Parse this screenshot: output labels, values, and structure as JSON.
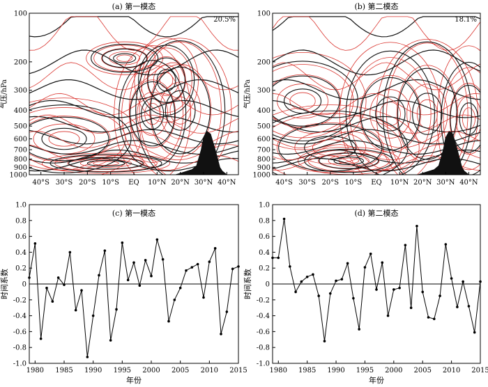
{
  "colors": {
    "streamline_red": "#d9322c",
    "streamline_black": "#111111",
    "terrain": "#111111",
    "axis": "#000000"
  },
  "chart_data": [
    {
      "type": "streamline",
      "title": "(a) 第一模态",
      "annotation": "20.5%",
      "ylabel": "气压/hPa",
      "yscale": "log",
      "y_ticks": [
        100,
        200,
        300,
        400,
        500,
        600,
        700,
        800,
        900,
        1000
      ],
      "x_ticks": [
        "40°S",
        "30°S",
        "20°S",
        "10°S",
        "EQ",
        "10°N",
        "20°N",
        "30°N",
        "40°N"
      ],
      "x_tick_values": [
        -40,
        -30,
        -20,
        -10,
        0,
        10,
        20,
        30,
        40
      ],
      "xlim": [
        -45,
        45
      ],
      "ylim": [
        1000,
        100
      ],
      "terrain": [
        [
          18,
          1000
        ],
        [
          22,
          960
        ],
        [
          25,
          930
        ],
        [
          27,
          880
        ],
        [
          29,
          700
        ],
        [
          30,
          590
        ],
        [
          31.5,
          540
        ],
        [
          33,
          560
        ],
        [
          35,
          700
        ],
        [
          37,
          900
        ],
        [
          38,
          950
        ],
        [
          40,
          1000
        ]
      ]
    },
    {
      "type": "streamline",
      "title": "(b) 第二模态",
      "annotation": "18.1%",
      "ylabel": "气压/hPa",
      "yscale": "log",
      "y_ticks": [
        100,
        200,
        300,
        400,
        500,
        600,
        700,
        800,
        900,
        1000
      ],
      "x_ticks": [
        "40°S",
        "30°S",
        "20°S",
        "10°S",
        "EQ",
        "10°N",
        "20°N",
        "30°N",
        "40°N"
      ],
      "x_tick_values": [
        -40,
        -30,
        -20,
        -10,
        0,
        10,
        20,
        30,
        40
      ],
      "xlim": [
        -45,
        45
      ],
      "ylim": [
        1000,
        100
      ],
      "terrain": [
        [
          18,
          1000
        ],
        [
          22,
          960
        ],
        [
          25,
          930
        ],
        [
          27,
          880
        ],
        [
          29,
          700
        ],
        [
          30,
          590
        ],
        [
          31.5,
          540
        ],
        [
          33,
          560
        ],
        [
          35,
          700
        ],
        [
          37,
          900
        ],
        [
          38,
          950
        ],
        [
          40,
          1000
        ]
      ]
    },
    {
      "type": "line",
      "title": "(c) 第一模态",
      "xlabel": "年份",
      "ylabel": "时间系数",
      "xlim": [
        1979,
        2015
      ],
      "ylim": [
        -1.0,
        1.0
      ],
      "x_ticks": [
        1980,
        1985,
        1990,
        1995,
        2000,
        2005,
        2010,
        2015
      ],
      "y_ticks": [
        -1.0,
        -0.8,
        -0.6,
        -0.4,
        -0.2,
        0,
        0.2,
        0.4,
        0.6,
        0.8,
        1.0
      ],
      "x": [
        1979,
        1980,
        1981,
        1982,
        1983,
        1984,
        1985,
        1986,
        1987,
        1988,
        1989,
        1990,
        1991,
        1992,
        1993,
        1994,
        1995,
        1996,
        1997,
        1998,
        1999,
        2000,
        2001,
        2002,
        2003,
        2004,
        2005,
        2006,
        2007,
        2008,
        2009,
        2010,
        2011,
        2012,
        2013,
        2014,
        2015
      ],
      "values": [
        0.08,
        0.51,
        -0.69,
        -0.05,
        -0.22,
        0.08,
        -0.01,
        0.4,
        -0.33,
        -0.08,
        -0.92,
        -0.4,
        0.11,
        0.42,
        -0.71,
        -0.32,
        0.52,
        0.05,
        0.27,
        -0.02,
        0.3,
        0.1,
        0.56,
        0.31,
        -0.47,
        -0.2,
        -0.05,
        0.17,
        0.21,
        0.25,
        -0.17,
        0.28,
        0.45,
        -0.63,
        -0.35,
        0.19,
        0.22
      ]
    },
    {
      "type": "line",
      "title": "(d) 第二模态",
      "xlabel": "年份",
      "ylabel": "时间系数",
      "xlim": [
        1979,
        2015
      ],
      "ylim": [
        -1.0,
        1.0
      ],
      "x_ticks": [
        1980,
        1985,
        1990,
        1995,
        2000,
        2005,
        2010,
        2015
      ],
      "y_ticks": [
        -1.0,
        -0.8,
        -0.6,
        -0.4,
        -0.2,
        0,
        0.2,
        0.4,
        0.6,
        0.8,
        1.0
      ],
      "x": [
        1979,
        1980,
        1981,
        1982,
        1983,
        1984,
        1985,
        1986,
        1987,
        1988,
        1989,
        1990,
        1991,
        1992,
        1993,
        1994,
        1995,
        1996,
        1997,
        1998,
        1999,
        2000,
        2001,
        2002,
        2003,
        2004,
        2005,
        2006,
        2007,
        2008,
        2009,
        2010,
        2011,
        2012,
        2013,
        2014,
        2015
      ],
      "values": [
        0.33,
        0.33,
        0.82,
        0.22,
        -0.1,
        0.03,
        0.09,
        0.12,
        -0.15,
        -0.72,
        -0.12,
        0.04,
        0.06,
        0.26,
        -0.18,
        -0.57,
        0.21,
        0.38,
        -0.07,
        0.27,
        -0.4,
        -0.07,
        -0.05,
        0.49,
        -0.3,
        0.73,
        -0.1,
        -0.42,
        -0.44,
        -0.15,
        0.5,
        0.07,
        -0.29,
        0.03,
        -0.28,
        -0.61,
        0.03
      ]
    }
  ]
}
